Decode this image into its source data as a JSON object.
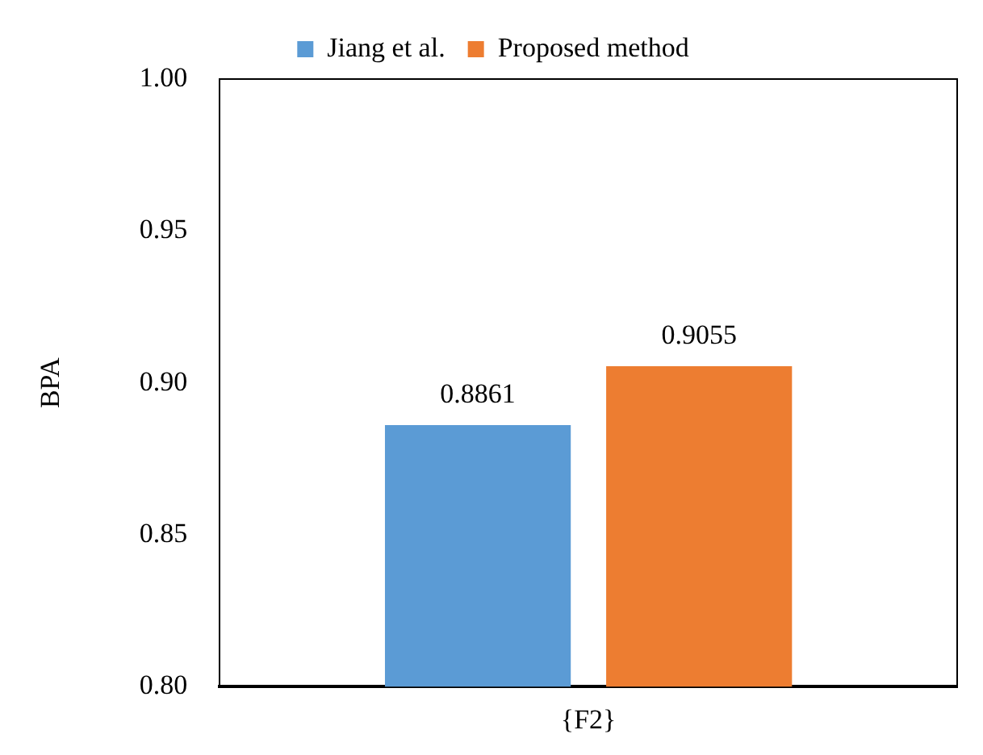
{
  "chart_data": {
    "type": "bar",
    "ylabel": "BPA",
    "categories": [
      "{F2}"
    ],
    "series": [
      {
        "name": "Jiang et al.",
        "color": "#5b9bd5",
        "values": [
          0.8861
        ]
      },
      {
        "name": "Proposed method",
        "color": "#ed7d31",
        "values": [
          0.9055
        ]
      }
    ],
    "ylim": [
      0.8,
      1.0
    ],
    "yticks": [
      {
        "value": 0.8,
        "label": "0.80"
      },
      {
        "value": 0.85,
        "label": "0.85"
      },
      {
        "value": 0.9,
        "label": "0.90"
      },
      {
        "value": 0.95,
        "label": "0.95"
      },
      {
        "value": 1.0,
        "label": "1.00"
      }
    ],
    "data_labels": true,
    "legend": "top",
    "grid": false
  }
}
